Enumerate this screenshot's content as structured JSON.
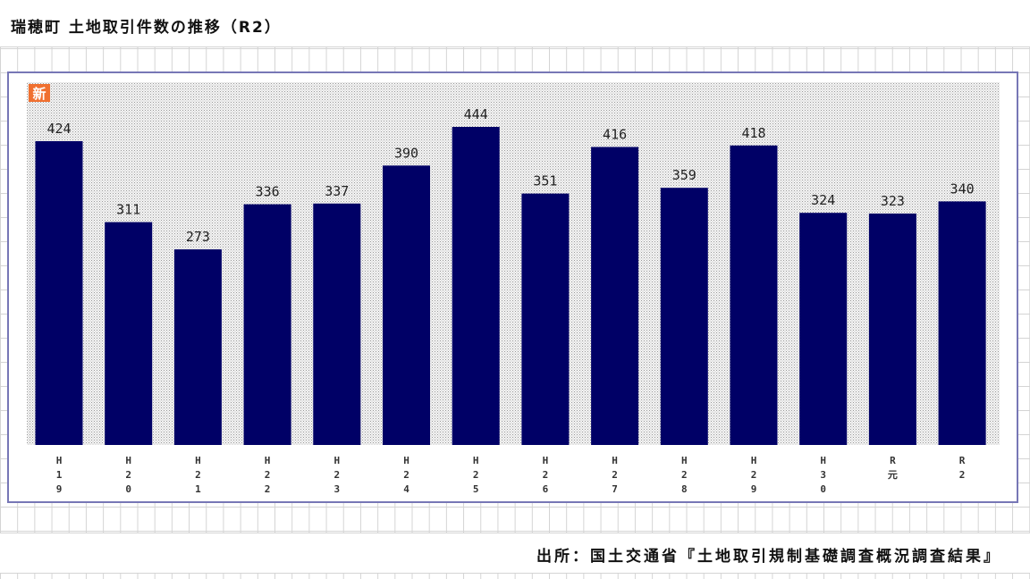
{
  "header": {
    "title": "瑞穂町 土地取引件数の推移（R2）"
  },
  "badge": {
    "text": "新"
  },
  "footer": {
    "source": "出所：国土交通省『土地取引規制基礎調査概況調査結果』"
  },
  "colors": {
    "bar": "#000066",
    "frame": "#7777b6",
    "badge": "#f07030",
    "plot_dots": "#9a9a9a"
  },
  "chart_data": {
    "type": "bar",
    "categories": [
      "H19",
      "H20",
      "H21",
      "H22",
      "H23",
      "H24",
      "H25",
      "H26",
      "H27",
      "H28",
      "H29",
      "H30",
      "R元",
      "R2"
    ],
    "tick_labels": [
      [
        "H",
        "1",
        "9"
      ],
      [
        "H",
        "2",
        "0"
      ],
      [
        "H",
        "2",
        "1"
      ],
      [
        "H",
        "2",
        "2"
      ],
      [
        "H",
        "2",
        "3"
      ],
      [
        "H",
        "2",
        "4"
      ],
      [
        "H",
        "2",
        "5"
      ],
      [
        "H",
        "2",
        "6"
      ],
      [
        "H",
        "2",
        "7"
      ],
      [
        "H",
        "2",
        "8"
      ],
      [
        "H",
        "2",
        "9"
      ],
      [
        "H",
        "3",
        "0"
      ],
      [
        "R",
        "元"
      ],
      [
        "R",
        "2"
      ]
    ],
    "values": [
      424,
      311,
      273,
      336,
      337,
      390,
      444,
      351,
      416,
      359,
      418,
      324,
      323,
      340
    ],
    "value_labels": [
      "424",
      "311",
      "273",
      "336",
      "337",
      "390",
      "444",
      "351",
      "416",
      "359",
      "418",
      "324",
      "323",
      "340"
    ],
    "ylim": [
      0,
      444
    ],
    "grid": false,
    "legend": "none"
  }
}
